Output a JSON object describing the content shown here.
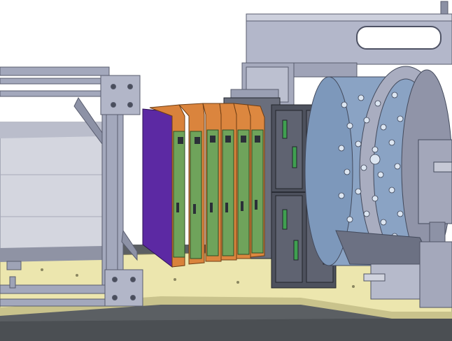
{
  "scene": {
    "kind": "cad-assembly-render",
    "text_labels": []
  },
  "components": [
    {
      "name": "aluminium-profile-frame",
      "color": "#9aa0b4"
    },
    {
      "name": "box-enclosure",
      "color": "#c8cad6"
    },
    {
      "name": "electronics-card-stack",
      "count": 6,
      "card_color": "#6fa25a",
      "carrier_color": "#d9813a"
    },
    {
      "name": "purple-side-plate",
      "color": "#5b2aa0"
    },
    {
      "name": "dark-readout-modules",
      "color": "#4a4e5a"
    },
    {
      "name": "perforated-cylindrical-detector",
      "color": "#7e9bc0"
    },
    {
      "name": "overhead-gantry-beam",
      "color": "#a9adc2"
    },
    {
      "name": "yellow-base-plate",
      "color": "#e8e2a8"
    },
    {
      "name": "dark-floor-platform",
      "color": "#5a5e62"
    }
  ]
}
